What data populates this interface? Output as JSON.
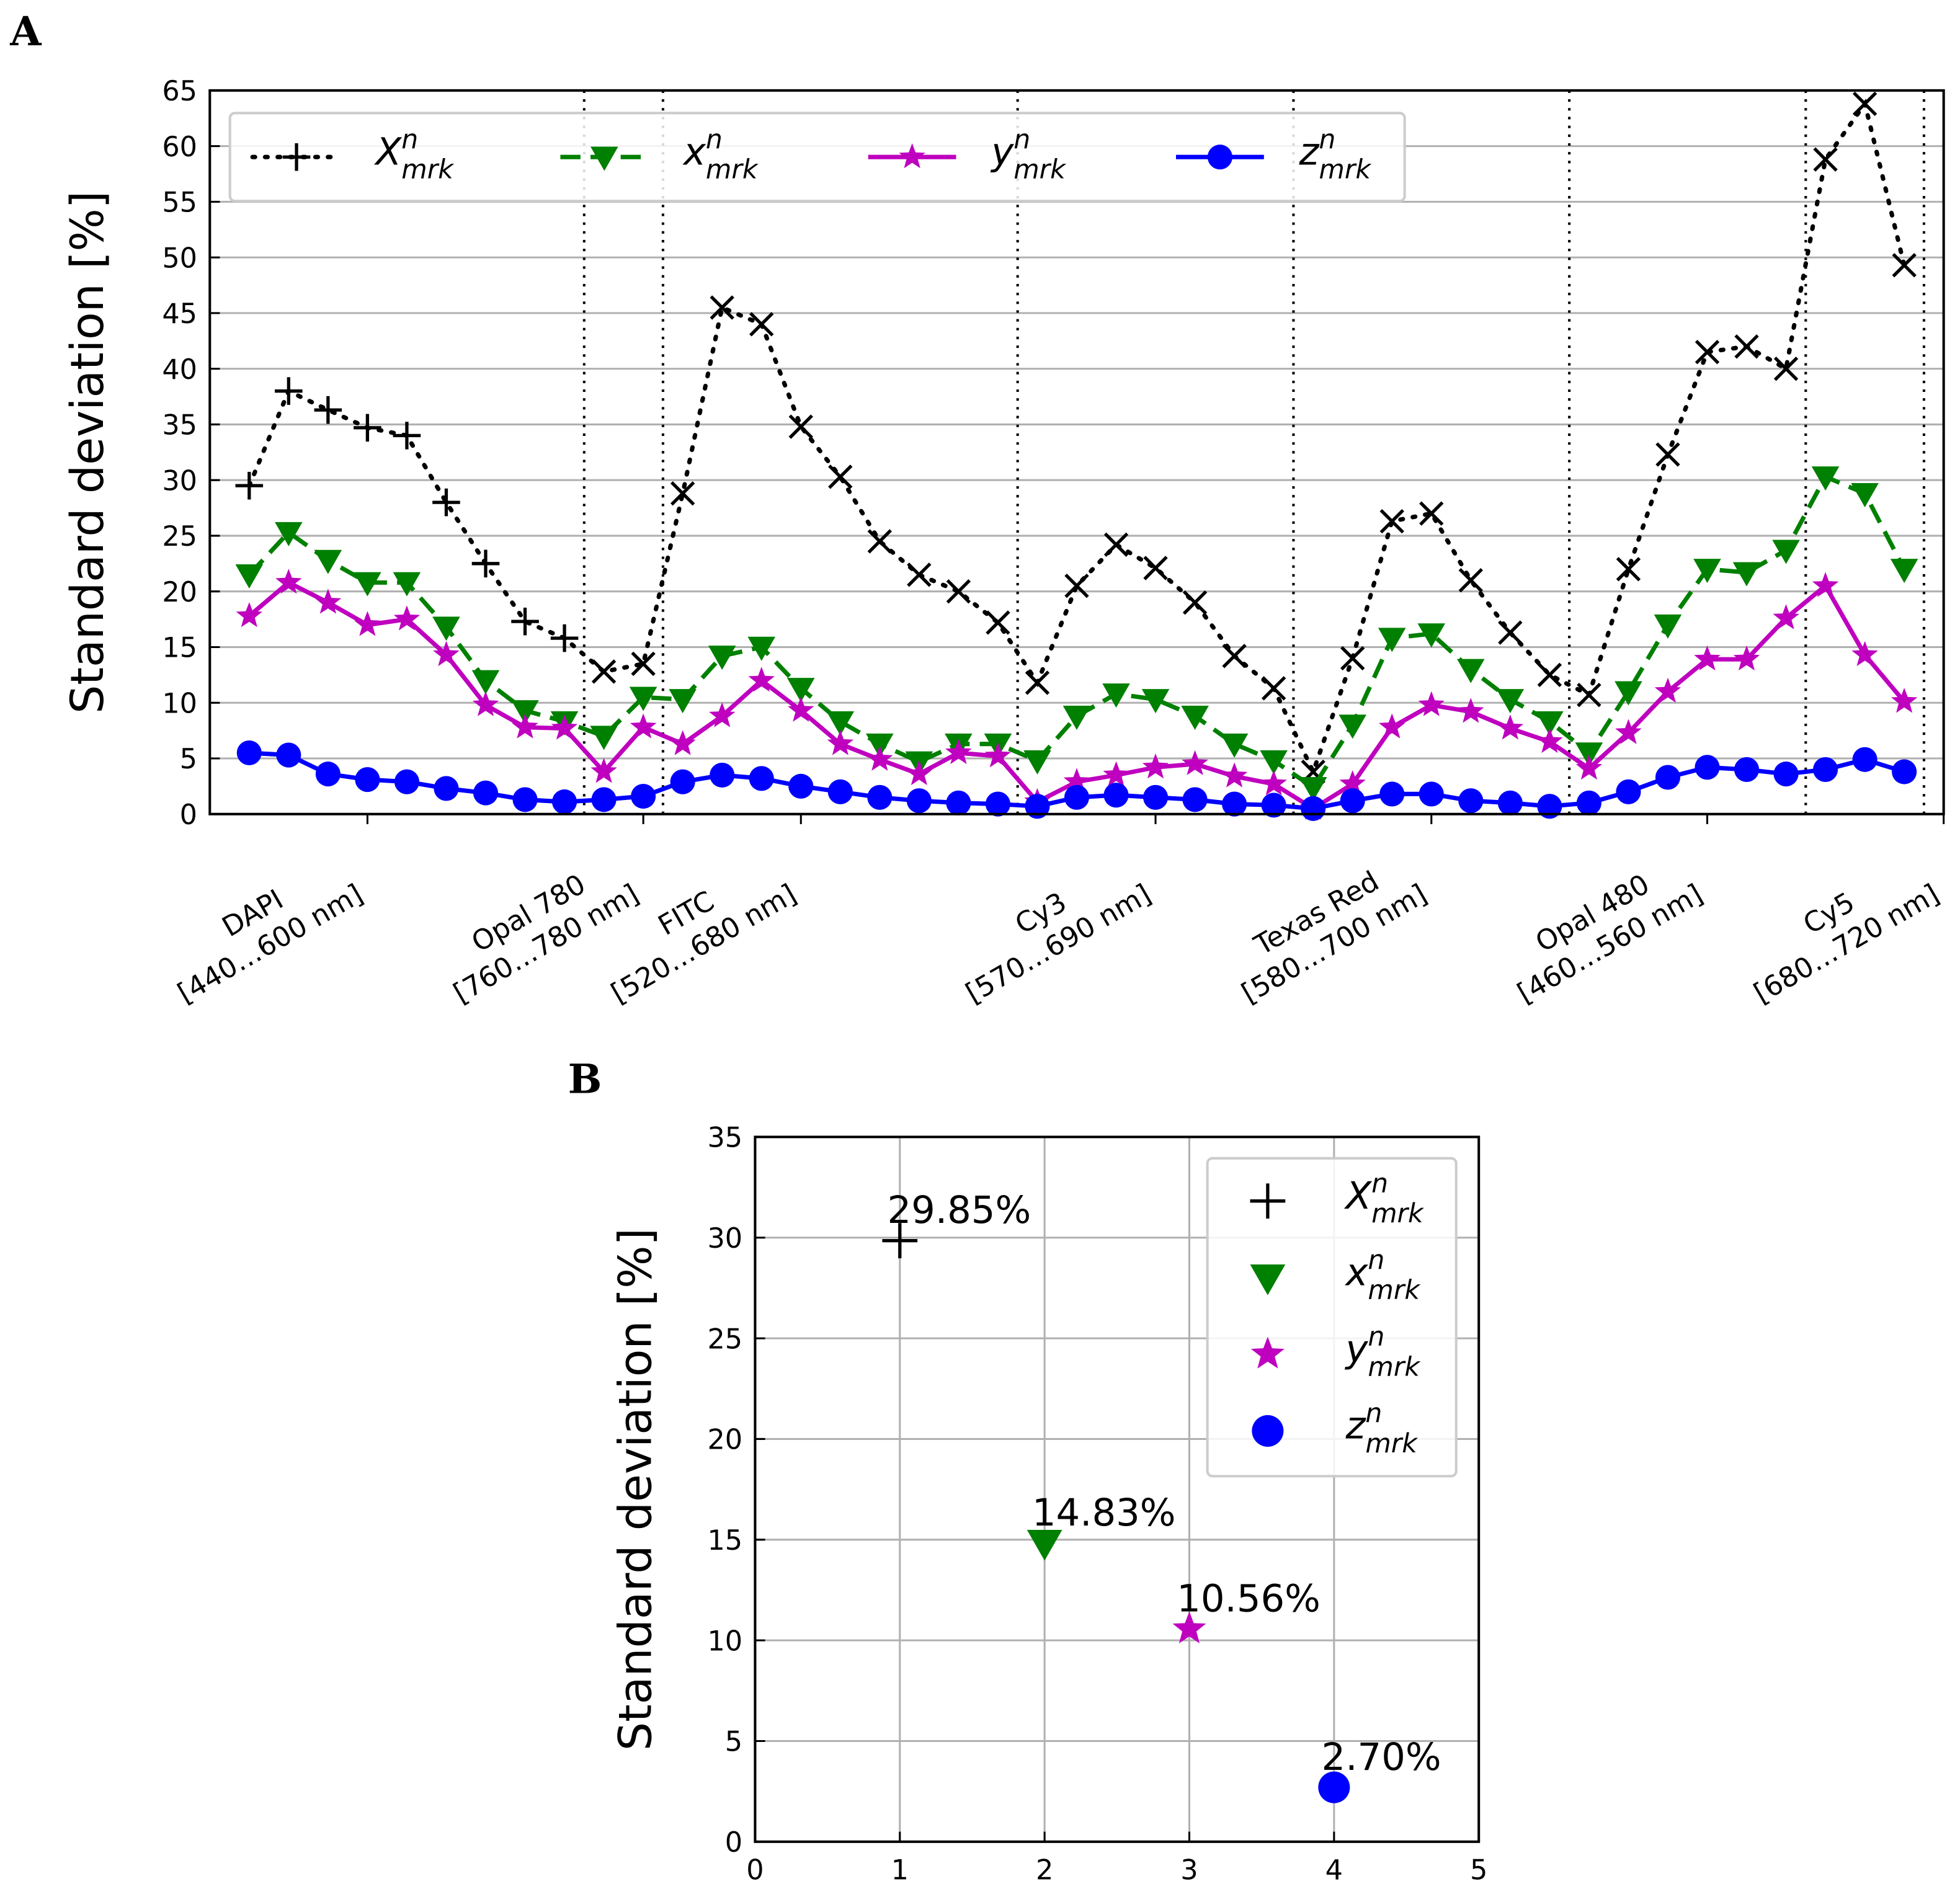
{
  "chart_data": [
    {
      "type": "line",
      "panel": "A",
      "ylabel": "Standard deviation [%]",
      "x": [
        0,
        1,
        2,
        3,
        4,
        5,
        6,
        7,
        8,
        9,
        10,
        11,
        12,
        13,
        14,
        15,
        16,
        17,
        18,
        19,
        20,
        21,
        22,
        23,
        24,
        25,
        26,
        27,
        28,
        29,
        30,
        31,
        32,
        33,
        34,
        35,
        36,
        37,
        38,
        39,
        40,
        41,
        42
      ],
      "xlim": [
        -1,
        43
      ],
      "xticks": [
        {
          "value": 3,
          "label": [
            "DAPI",
            "[440…600 nm]"
          ]
        },
        {
          "value": 10,
          "label": [
            "Opal 780",
            "[760…780 nm]"
          ]
        },
        {
          "value": 14,
          "label": [
            "FITC",
            "[520…680 nm]"
          ]
        },
        {
          "value": 23,
          "label": [
            "Cy3",
            "[570…690 nm]"
          ]
        },
        {
          "value": 30,
          "label": [
            "Texas Red",
            "[580…700 nm]"
          ]
        },
        {
          "value": 37,
          "label": [
            "Opal 480",
            "[460…560 nm]"
          ]
        },
        {
          "value": 43,
          "label": [
            "Cy5",
            "[680…720 nm]"
          ]
        }
      ],
      "vlines": [
        8.5,
        10.5,
        19.5,
        26.5,
        33.5,
        39.5,
        42.5
      ],
      "ylim": [
        0,
        65
      ],
      "yticks": [
        0,
        5,
        10,
        15,
        20,
        25,
        30,
        35,
        40,
        45,
        50,
        55,
        60,
        65
      ],
      "grid": true,
      "legend": {
        "loc": "upper left",
        "ncol": 4
      },
      "series": [
        {
          "name": "X",
          "sup": "n",
          "sub": "mrk",
          "color": "#000000",
          "linestyle": "dotted",
          "markers": [
            "plus",
            "plus",
            "plus",
            "plus",
            "plus",
            "plus",
            "plus",
            "plus",
            "plus",
            "x",
            "x",
            "x",
            "x",
            "x",
            "x",
            "x",
            "x",
            "x",
            "x",
            "x",
            "x",
            "x",
            "x",
            "x",
            "x",
            "x",
            "x",
            "x",
            "x",
            "x",
            "x",
            "x",
            "x",
            "x",
            "x",
            "x",
            "x",
            "x",
            "x",
            "x",
            "x",
            "x",
            "x"
          ],
          "values": [
            29.5,
            38,
            36.3,
            34.7,
            34,
            28,
            22.5,
            17.3,
            15.8,
            12.8,
            13.5,
            28.8,
            45.5,
            44,
            34.8,
            30.3,
            24.5,
            21.5,
            20,
            17.2,
            11.8,
            20.5,
            24.2,
            22.1,
            19,
            14.2,
            11.3,
            3.8,
            14,
            26.3,
            27,
            21,
            16.3,
            12.5,
            10.7,
            22,
            32.3,
            41.5,
            42,
            40,
            58.8,
            63.8,
            49.3
          ]
        },
        {
          "name": "x",
          "sup": "n",
          "sub": "mrk",
          "color": "#008000",
          "linestyle": "dashed",
          "marker": "tri",
          "values": [
            21.5,
            25.3,
            22.8,
            20.8,
            20.8,
            16.8,
            12,
            9.3,
            8.3,
            7,
            10.5,
            10.3,
            14.2,
            15,
            11.3,
            8.3,
            6.3,
            4.7,
            6.3,
            6.3,
            4.8,
            8.8,
            10.8,
            10.3,
            8.8,
            6.3,
            4.8,
            2.4,
            8,
            15.8,
            16.2,
            13,
            10.3,
            8.3,
            5.5,
            11,
            17,
            22,
            21.7,
            23.7,
            30.3,
            28.8,
            22
          ]
        },
        {
          "name": "y",
          "sup": "n",
          "sub": "mrk",
          "color": "#bf00bf",
          "linestyle": "solid",
          "marker": "star",
          "values": [
            17.8,
            20.8,
            19,
            17,
            17.5,
            14.3,
            9.8,
            7.8,
            7.7,
            3.8,
            7.8,
            6.3,
            8.8,
            12,
            9.3,
            6.3,
            4.9,
            3.6,
            5.5,
            5.2,
            1.1,
            2.9,
            3.5,
            4.2,
            4.5,
            3.4,
            2.7,
            0.5,
            2.7,
            7.8,
            9.8,
            9.2,
            7.7,
            6.5,
            4.1,
            7.3,
            11,
            13.9,
            13.9,
            17.6,
            20.5,
            14.3,
            10.1
          ]
        },
        {
          "name": "z",
          "sup": "n",
          "sub": "mrk",
          "color": "#0000ff",
          "linestyle": "solid",
          "marker": "circle",
          "values": [
            5.5,
            5.3,
            3.6,
            3.1,
            2.9,
            2.3,
            1.9,
            1.3,
            1.1,
            1.3,
            1.6,
            2.9,
            3.5,
            3.2,
            2.5,
            2,
            1.5,
            1.2,
            1,
            0.9,
            0.7,
            1.5,
            1.7,
            1.5,
            1.3,
            0.9,
            0.8,
            0.5,
            1.2,
            1.8,
            1.8,
            1.2,
            1,
            0.7,
            1,
            2,
            3.3,
            4.2,
            4,
            3.6,
            4,
            4.9,
            3.8
          ]
        }
      ]
    },
    {
      "type": "scatter",
      "panel": "B",
      "ylabel": "Standard deviation [%]",
      "xlim": [
        0,
        5
      ],
      "xticks": [
        0,
        1,
        2,
        3,
        4,
        5
      ],
      "ylim": [
        0,
        35
      ],
      "yticks": [
        0,
        5,
        10,
        15,
        20,
        25,
        30,
        35
      ],
      "grid": true,
      "legend": {
        "loc": "upper right",
        "ncol": 1
      },
      "series": [
        {
          "name": "X",
          "sup": "n",
          "sub": "mrk",
          "color": "#000000",
          "marker": "plus",
          "x": [
            1
          ],
          "values": [
            29.85
          ],
          "value_labels": [
            "29.85%"
          ]
        },
        {
          "name": "x",
          "sup": "n",
          "sub": "mrk",
          "color": "#008000",
          "marker": "tri",
          "x": [
            2
          ],
          "values": [
            14.83
          ],
          "value_labels": [
            "14.83%"
          ]
        },
        {
          "name": "y",
          "sup": "n",
          "sub": "mrk",
          "color": "#bf00bf",
          "marker": "star",
          "x": [
            3
          ],
          "values": [
            10.56
          ],
          "value_labels": [
            "10.56%"
          ]
        },
        {
          "name": "z",
          "sup": "n",
          "sub": "mrk",
          "color": "#0000ff",
          "marker": "circle",
          "x": [
            4
          ],
          "values": [
            2.7
          ],
          "value_labels": [
            "2.70%"
          ]
        }
      ]
    }
  ]
}
